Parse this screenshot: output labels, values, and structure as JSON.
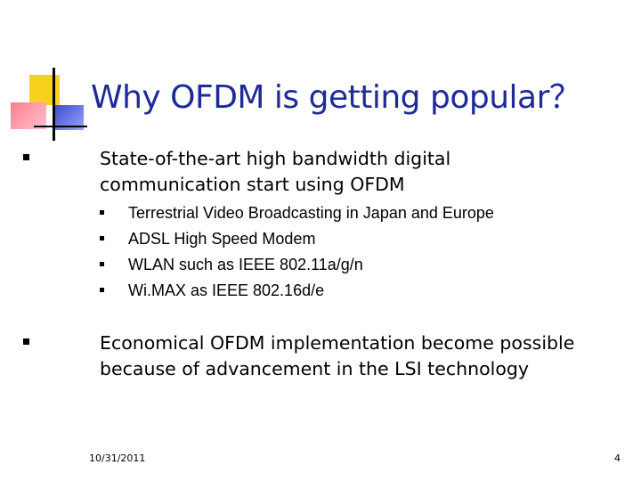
{
  "slide": {
    "title": "Why OFDM is getting popular？",
    "bullets": [
      {
        "text": "State-of-the-art high bandwidth digital communication start using OFDM",
        "sub_items": [
          "Terrestrial Video Broadcasting in Japan and Europe",
          "ADSL High Speed Modem",
          "WLAN such as IEEE 802.11a/g/n",
          "Wi.MAX as IEEE 802.16d/e"
        ]
      },
      {
        "text": "Economical OFDM implementation become possible because of advancement in the LSI technology"
      }
    ],
    "footer": {
      "date": "10/31/2011",
      "page_number": "4"
    }
  },
  "colors": {
    "title": "#1f2a9a",
    "text": "#000000",
    "background": "#ffffff",
    "logo_yellow": "#f7d21c",
    "logo_red": "#ff7b8f",
    "logo_blue": "#3b49d6"
  }
}
